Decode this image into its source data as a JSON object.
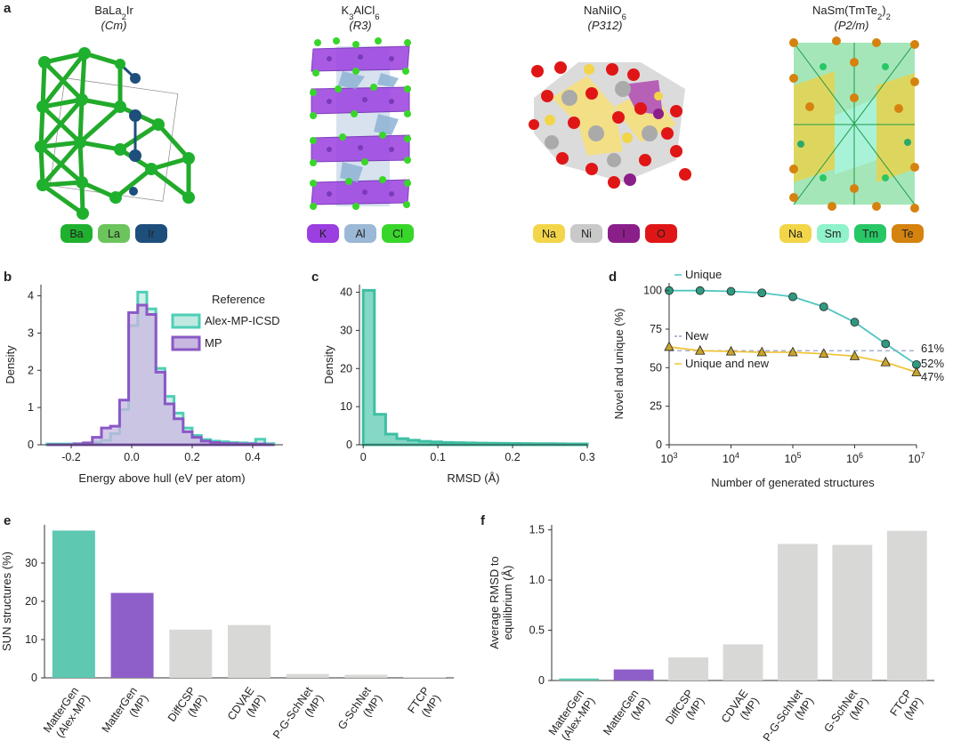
{
  "panel_letters": {
    "a": "a",
    "b": "b",
    "c": "c",
    "d": "d",
    "e": "e",
    "f": "f"
  },
  "structures": [
    {
      "formula_parts": [
        [
          "BaLa",
          ""
        ],
        [
          "2",
          "sub"
        ],
        [
          "Ir",
          ""
        ]
      ],
      "space_group": "(Cm)",
      "elements": [
        {
          "label": "Ba",
          "color": "#1fb02e",
          "text_color": "#ffffff"
        },
        {
          "label": "La",
          "color": "#6cc45d",
          "text_color": "#ffffff"
        },
        {
          "label": "Ir",
          "color": "#1e4e7c",
          "text_color": "#ffffff"
        }
      ]
    },
    {
      "formula_parts": [
        [
          "K",
          ""
        ],
        [
          "3",
          "sub"
        ],
        [
          "AlCl",
          ""
        ],
        [
          "6",
          "sub"
        ]
      ],
      "space_group": "(R3)",
      "elements": [
        {
          "label": "K",
          "color": "#9b3fe0",
          "text_color": "#ffffff"
        },
        {
          "label": "Al",
          "color": "#9bb8d6",
          "text_color": "#ffffff"
        },
        {
          "label": "Cl",
          "color": "#38d62a",
          "text_color": "#222222"
        }
      ]
    },
    {
      "formula_parts": [
        [
          "NaNiIO",
          ""
        ],
        [
          "6",
          "sub"
        ]
      ],
      "space_group": "(P312)",
      "elements": [
        {
          "label": "Na",
          "color": "#f2d548",
          "text_color": "#222222"
        },
        {
          "label": "Ni",
          "color": "#c9c9c9",
          "text_color": "#ffffff"
        },
        {
          "label": "I",
          "color": "#8b1f8a",
          "text_color": "#ffffff"
        },
        {
          "label": "O",
          "color": "#e01616",
          "text_color": "#ffffff"
        }
      ]
    },
    {
      "formula_parts": [
        [
          "NaSm(TmTe",
          ""
        ],
        [
          "2",
          "sub"
        ],
        [
          ")",
          ""
        ],
        [
          "2",
          "sub"
        ]
      ],
      "space_group": "(P2/m)",
      "elements": [
        {
          "label": "Na",
          "color": "#f2d548",
          "text_color": "#222222"
        },
        {
          "label": "Sm",
          "color": "#8ff2c8",
          "text_color": "#222222"
        },
        {
          "label": "Tm",
          "color": "#28c766",
          "text_color": "#222222"
        },
        {
          "label": "Te",
          "color": "#d5820e",
          "text_color": "#ffffff"
        }
      ]
    }
  ],
  "chart_data": [
    {
      "id": "b",
      "type": "histogram",
      "xlabel": "Energy above hull (eV per atom)",
      "ylabel": "Density",
      "xlim": [
        -0.3,
        0.5
      ],
      "ylim": [
        0,
        4.3
      ],
      "xticks": [
        "-0.2",
        "0.0",
        "0.2",
        "0.4"
      ],
      "xtick_values": [
        -0.2,
        0.0,
        0.2,
        0.4
      ],
      "yticks": [
        "0",
        "1",
        "2",
        "3",
        "4"
      ],
      "ytick_values": [
        0,
        1,
        2,
        3,
        4
      ],
      "legend_title": "Reference",
      "bin_edges": [
        -0.28,
        -0.25,
        -0.22,
        -0.19,
        -0.16,
        -0.13,
        -0.1,
        -0.07,
        -0.04,
        -0.01,
        0.02,
        0.05,
        0.08,
        0.11,
        0.14,
        0.17,
        0.2,
        0.23,
        0.26,
        0.29,
        0.32,
        0.35,
        0.38,
        0.41,
        0.44,
        0.47
      ],
      "series": [
        {
          "name": "Alex-MP-ICSD",
          "color": "#4ecfb6",
          "fill": "#bfe9e1",
          "values": [
            0.02,
            0.02,
            0.02,
            0.03,
            0.04,
            0.07,
            0.12,
            0.3,
            0.95,
            3.2,
            4.1,
            3.65,
            2.05,
            1.3,
            0.85,
            0.45,
            0.25,
            0.14,
            0.1,
            0.08,
            0.06,
            0.05,
            0.04,
            0.15,
            0.03
          ]
        },
        {
          "name": "MP",
          "color": "#8a58c6",
          "fill": "#c8b7e0",
          "values": [
            0.0,
            0.0,
            0.0,
            0.02,
            0.05,
            0.2,
            0.45,
            0.5,
            1.2,
            3.55,
            3.75,
            3.5,
            1.95,
            1.1,
            0.7,
            0.35,
            0.2,
            0.1,
            0.06,
            0.04,
            0.03,
            0.02,
            0.02,
            0.02,
            0.0
          ]
        }
      ]
    },
    {
      "id": "c",
      "type": "histogram",
      "xlabel": "RMSD (Å)",
      "ylabel": "Density",
      "xlim": [
        -0.005,
        0.3
      ],
      "ylim": [
        0,
        42
      ],
      "xticks": [
        "0",
        "0.1",
        "0.2",
        "0.3"
      ],
      "xtick_values": [
        0,
        0.1,
        0.2,
        0.3
      ],
      "yticks": [
        "0",
        "10",
        "20",
        "30",
        "40"
      ],
      "ytick_values": [
        0,
        10,
        20,
        30,
        40
      ],
      "bin_edges": [
        0,
        0.015,
        0.03,
        0.045,
        0.06,
        0.075,
        0.09,
        0.105,
        0.12,
        0.135,
        0.15,
        0.165,
        0.18,
        0.195,
        0.21,
        0.225,
        0.24,
        0.255,
        0.27,
        0.285,
        0.3
      ],
      "series": [
        {
          "name": "RMSD",
          "color": "#3ebfa3",
          "fill": "#5ccbb2",
          "values": [
            40.5,
            8.0,
            2.8,
            1.6,
            1.2,
            0.9,
            0.75,
            0.6,
            0.55,
            0.5,
            0.45,
            0.4,
            0.38,
            0.35,
            0.33,
            0.3,
            0.28,
            0.26,
            0.24,
            0.22
          ]
        }
      ]
    },
    {
      "id": "d",
      "type": "line",
      "xlabel": "Number of generated structures",
      "ylabel": "Novel and unique (%)",
      "xscale": "log",
      "xlim_log10": [
        3,
        7
      ],
      "ylim": [
        0,
        105
      ],
      "xtick_base": "10",
      "xtick_exponents": [
        "3",
        "4",
        "5",
        "6",
        "7"
      ],
      "yticks": [
        "0",
        "25",
        "50",
        "75",
        "100"
      ],
      "ytick_values": [
        0,
        25,
        50,
        75,
        100
      ],
      "x_log10": [
        3,
        3.5,
        4,
        4.5,
        5,
        5.5,
        6,
        6.5,
        7
      ],
      "series": [
        {
          "name": "Unique",
          "color": "#4ec5c1",
          "marker_fill": "#2f9a7f",
          "marker": "circle",
          "values": [
            100,
            100,
            99.5,
            98.5,
            96,
            89.5,
            79.5,
            65.5,
            52
          ]
        },
        {
          "name": "New",
          "color": "#9aa0c8",
          "marker": "none",
          "dashed": true,
          "values": [
            61,
            61,
            61,
            61,
            61,
            61,
            61,
            61,
            61
          ]
        },
        {
          "name": "Unique and new",
          "color": "#f0c43c",
          "marker_fill": "#c9a32b",
          "marker": "triangle",
          "values": [
            63.5,
            61,
            60.5,
            60,
            60,
            59,
            57.5,
            53.5,
            47
          ]
        }
      ],
      "end_labels": [
        "61%",
        "52%",
        "47%"
      ]
    },
    {
      "id": "e",
      "type": "bar",
      "ylabel": "SUN structures (%)",
      "ylim": [
        0,
        40
      ],
      "yticks": [
        "0",
        "10",
        "20",
        "30"
      ],
      "ytick_values": [
        0,
        10,
        20,
        30
      ],
      "categories": [
        [
          "MatterGen",
          "(Alex-MP)"
        ],
        [
          "MatterGen",
          "(MP)"
        ],
        [
          "DiffCSP",
          "(MP)"
        ],
        [
          "CDVAE",
          "(MP)"
        ],
        [
          "P-G-SchNet",
          "(MP)"
        ],
        [
          "G-SchNet",
          "(MP)"
        ],
        [
          "FTCP",
          "(MP)"
        ]
      ],
      "values": [
        38.5,
        22.2,
        12.6,
        13.8,
        1.0,
        0.8,
        0.1
      ],
      "colors": [
        "#5ec8b0",
        "#8e5fc8",
        "#d8d8d6",
        "#d8d8d6",
        "#d8d8d6",
        "#d8d8d6",
        "#d8d8d6"
      ]
    },
    {
      "id": "f",
      "type": "bar",
      "ylabel_lines": [
        "Average RMSD to",
        "equilibrium (Å)"
      ],
      "ylim": [
        0,
        1.55
      ],
      "yticks": [
        "0",
        "0.5",
        "1.0",
        "1.5"
      ],
      "ytick_values": [
        0,
        0.5,
        1.0,
        1.5
      ],
      "categories": [
        [
          "MatterGen",
          "(Alex-MP)"
        ],
        [
          "MatterGen",
          "(MP)"
        ],
        [
          "DiffCSP",
          "(MP)"
        ],
        [
          "CDVAE",
          "(MP)"
        ],
        [
          "P-G-SchNet",
          "(MP)"
        ],
        [
          "G-SchNet",
          "(MP)"
        ],
        [
          "FTCP",
          "(MP)"
        ]
      ],
      "values": [
        0.02,
        0.11,
        0.23,
        0.36,
        1.36,
        1.35,
        1.49
      ],
      "colors": [
        "#5ec8b0",
        "#8e5fc8",
        "#d8d8d6",
        "#d8d8d6",
        "#d8d8d6",
        "#d8d8d6",
        "#d8d8d6"
      ]
    }
  ]
}
